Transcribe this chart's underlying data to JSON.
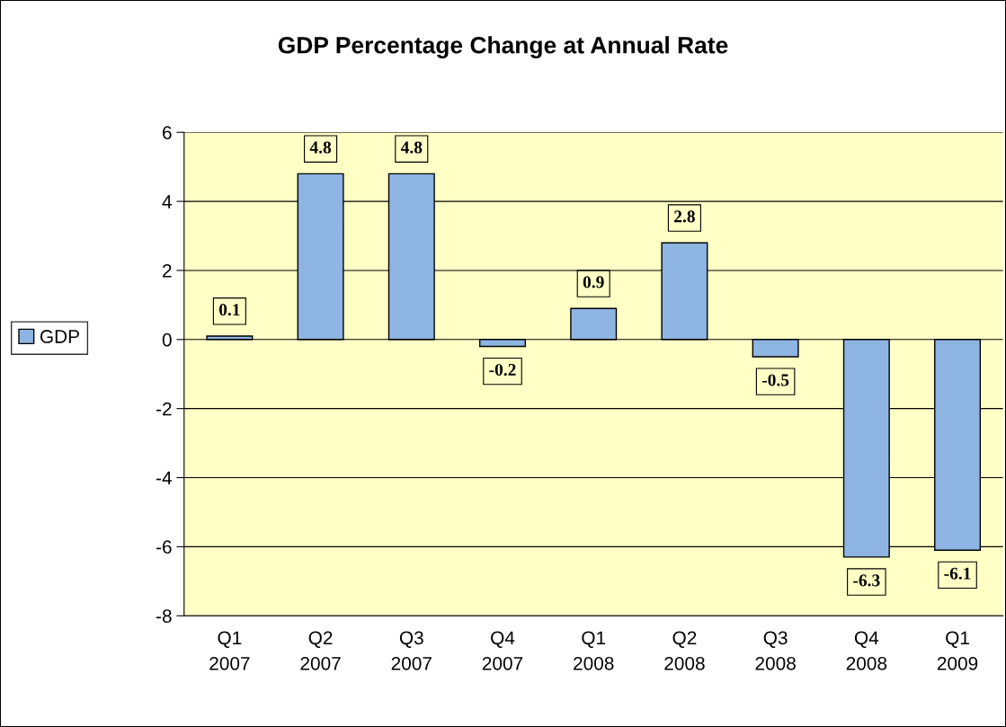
{
  "chart_data": {
    "type": "bar",
    "title": "GDP Percentage Change at Annual Rate",
    "categories": [
      "Q1\n2007",
      "Q2\n2007",
      "Q3\n2007",
      "Q4\n2007",
      "Q1\n2008",
      "Q2\n2008",
      "Q3\n2008",
      "Q4\n2008",
      "Q1\n2009"
    ],
    "series": [
      {
        "name": "GDP",
        "color": "#8db4e2",
        "values": [
          0.1,
          4.8,
          4.8,
          -0.2,
          0.9,
          2.8,
          -0.5,
          -6.3,
          -6.1
        ]
      }
    ],
    "ylim": [
      -8,
      6
    ],
    "yticks": [
      -8,
      -6,
      -4,
      -2,
      0,
      2,
      4,
      6
    ],
    "grid": "y",
    "legend": "left",
    "data_labels": true
  }
}
